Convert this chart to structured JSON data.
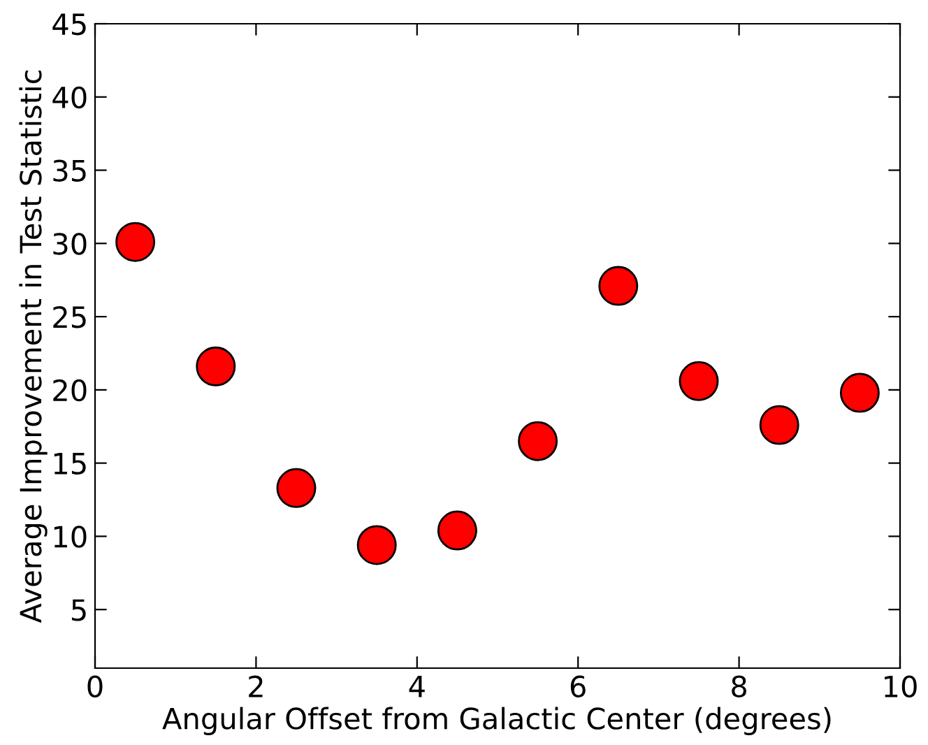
{
  "chart_data": {
    "type": "scatter",
    "xlabel": "Angular Offset from Galactic Center (degrees)",
    "ylabel": "Average Improvement in Test Statistic",
    "x": [
      0.5,
      1.5,
      2.5,
      3.5,
      4.5,
      5.5,
      6.5,
      7.5,
      8.5,
      9.5
    ],
    "series": [
      {
        "color": "#ff0000",
        "values": [
          30.1,
          21.6,
          13.3,
          9.4,
          10.4,
          16.5,
          27.1,
          20.6,
          17.6,
          19.8
        ]
      }
    ],
    "xlim": [
      0,
      10
    ],
    "xticks": [
      0,
      2,
      4,
      6,
      8,
      10
    ],
    "ylim": [
      1,
      45
    ],
    "yticks": [
      5,
      10,
      15,
      20,
      25,
      30,
      35,
      40,
      45
    ],
    "marker": "circle",
    "grid": false,
    "legend": false
  }
}
